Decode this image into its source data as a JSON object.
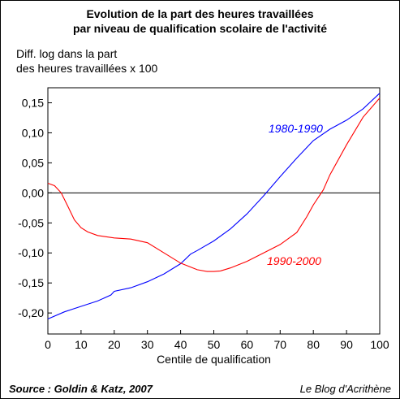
{
  "chart_data": {
    "type": "line",
    "title_line1": "Evolution de la part des heures travaillées",
    "title_line2": "par niveau de qualification scolaire de l'activité",
    "ylabel_line1": "Diff. log dans la part",
    "ylabel_line2": "des heures travaillées x 100",
    "xlabel": "Centile de qualification",
    "xlim": [
      0,
      100
    ],
    "ylim": [
      -0.235,
      0.175
    ],
    "xticks": [
      0,
      10,
      20,
      30,
      40,
      50,
      60,
      70,
      80,
      90,
      100
    ],
    "xtick_labels": [
      "0",
      "10",
      "20",
      "30",
      "40",
      "50",
      "60",
      "70",
      "80",
      "90",
      "100"
    ],
    "yticks": [
      0.15,
      0.1,
      0.05,
      0.0,
      -0.05,
      -0.1,
      -0.15,
      -0.2
    ],
    "ytick_labels": [
      "0,15",
      "0,10",
      "0,05",
      "0,00",
      "-0,05",
      "-0,10",
      "-0,15",
      "-0,20"
    ],
    "grid": false,
    "zero_line": true,
    "series": [
      {
        "name": "1980-1990",
        "color": "#0000ff",
        "x": [
          0,
          5,
          10,
          15,
          19,
          20,
          25,
          30,
          35,
          40,
          43,
          45,
          50,
          55,
          60,
          65,
          70,
          75,
          80,
          85,
          90,
          95,
          100
        ],
        "y": [
          -0.21,
          -0.198,
          -0.189,
          -0.18,
          -0.17,
          -0.164,
          -0.158,
          -0.148,
          -0.135,
          -0.118,
          -0.102,
          -0.096,
          -0.08,
          -0.06,
          -0.035,
          -0.005,
          0.027,
          0.058,
          0.087,
          0.106,
          0.121,
          0.14,
          0.166
        ]
      },
      {
        "name": "1990-2000",
        "color": "#ff0000",
        "x": [
          0,
          2,
          4,
          6,
          8,
          10,
          12,
          15,
          20,
          25,
          30,
          35,
          40,
          45,
          48,
          50,
          52,
          55,
          60,
          65,
          70,
          75,
          78,
          80,
          83,
          85,
          90,
          95,
          100
        ],
        "y": [
          0.016,
          0.012,
          0.0,
          -0.022,
          -0.045,
          -0.058,
          -0.065,
          -0.071,
          -0.075,
          -0.077,
          -0.083,
          -0.1,
          -0.117,
          -0.128,
          -0.131,
          -0.131,
          -0.13,
          -0.125,
          -0.114,
          -0.1,
          -0.086,
          -0.066,
          -0.04,
          -0.02,
          0.005,
          0.03,
          0.08,
          0.126,
          0.158
        ]
      }
    ]
  },
  "footer": {
    "source": "Source : Goldin & Katz, 2007",
    "credit": "Le Blog d'Acrithène"
  }
}
